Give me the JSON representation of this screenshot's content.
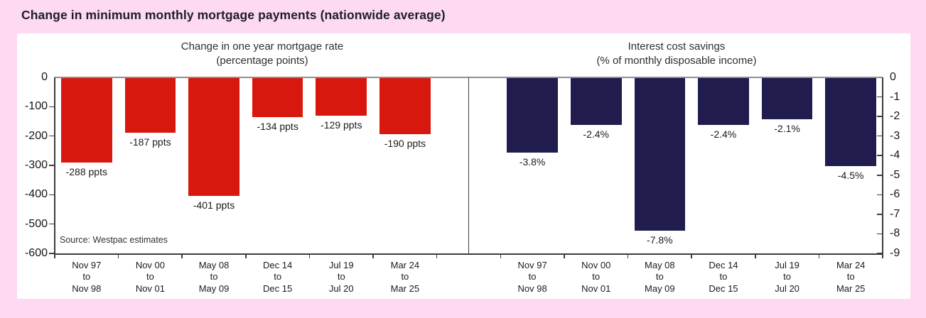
{
  "page_title": "Change in minimum monthly mortgage payments (nationwide average)",
  "source_note": "Source: Westpac estimates",
  "colors": {
    "background_pink": "#fed9f2",
    "card_white": "#ffffff",
    "bar_red": "#d8170f",
    "bar_navy": "#201c4e",
    "axis_dark": "#3c3c3c",
    "zero_line_gray": "#8f8f8f",
    "text_dark": "#1a1a1a"
  },
  "chart_data": [
    {
      "type": "bar",
      "title": "Change in one year mortgage rate",
      "subtitle": "(percentage points)",
      "categories": [
        "Nov 97\nto\nNov 98",
        "Nov 00\nto\nNov 01",
        "May 08\nto\nMay 09",
        "Dec 14\nto\nDec 15",
        "Jul 19\nto\nJul 20",
        "Mar 24\nto\nMar 25"
      ],
      "values": [
        -288,
        -187,
        -401,
        -134,
        -129,
        -190
      ],
      "data_labels": [
        "-288 ppts",
        "-187 ppts",
        "-401 ppts",
        "-134 ppts",
        "-129 ppts",
        "-190 ppts"
      ],
      "ylim": [
        -600,
        0
      ],
      "yticks": [
        "0",
        "-100",
        "-200",
        "-300",
        "-400",
        "-500",
        "-600"
      ],
      "yaxis_side": "left",
      "bar_color": "#d8170f",
      "grid": false,
      "legend": "none"
    },
    {
      "type": "bar",
      "title": "Interest cost savings",
      "subtitle": "(% of monthly disposable income)",
      "categories": [
        "Nov 97\nto\nNov 98",
        "Nov 00\nto\nNov 01",
        "May 08\nto\nMay 09",
        "Dec 14\nto\nDec 15",
        "Jul 19\nto\nJul 20",
        "Mar 24\nto\nMar 25"
      ],
      "values": [
        -3.8,
        -2.4,
        -7.8,
        -2.4,
        -2.1,
        -4.5
      ],
      "data_labels": [
        "-3.8%",
        "-2.4%",
        "-7.8%",
        "-2.4%",
        "-2.1%",
        "-4.5%"
      ],
      "ylim": [
        -9,
        0
      ],
      "yticks": [
        "0",
        "-1",
        "-2",
        "-3",
        "-4",
        "-5",
        "-6",
        "-7",
        "-8",
        "-9"
      ],
      "yaxis_side": "right",
      "bar_color": "#201c4e",
      "grid": false,
      "legend": "none"
    }
  ]
}
